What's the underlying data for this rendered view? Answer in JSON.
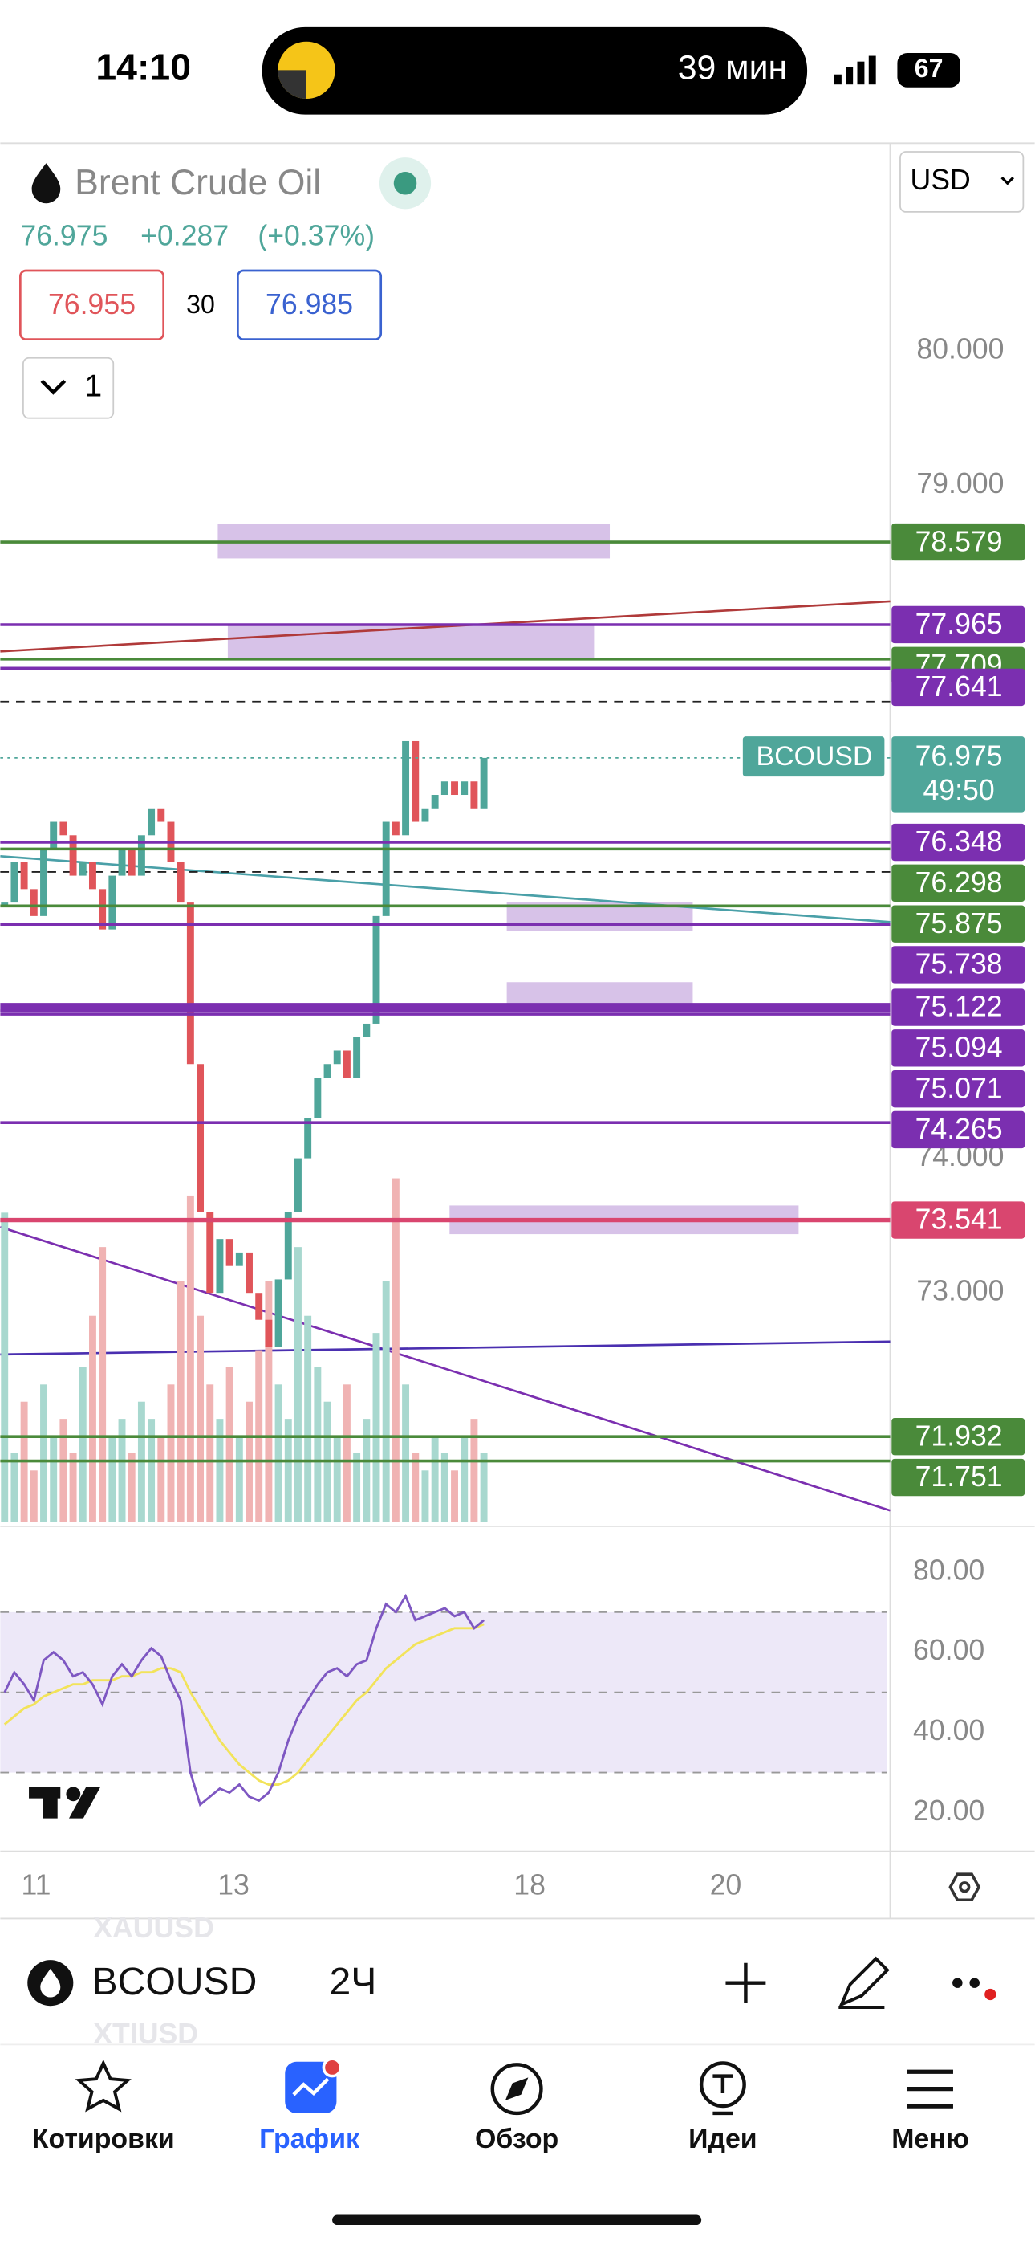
{
  "status_bar": {
    "time": "14:10",
    "activity": "39 мин",
    "battery": "67"
  },
  "header": {
    "symbol_name": "Brent Crude Oil",
    "price": "76.975",
    "change": "+0.287",
    "change_pct": "(+0.37%)",
    "bid": "76.955",
    "spread": "30",
    "ask": "76.985",
    "indicators_toggle": "1",
    "currency": "USD"
  },
  "price_axis": {
    "ticks": [
      "80.000",
      "79.000",
      "74.000",
      "73.000"
    ]
  },
  "levels": [
    {
      "label": "78.579",
      "color": "#4a8a3a"
    },
    {
      "label": "77.965",
      "color": "#7b2fb0"
    },
    {
      "label": "77.709",
      "color": "#4a8a3a"
    },
    {
      "label": "77.641",
      "color": "#7b2fb0"
    },
    {
      "label": "76.348",
      "color": "#7b2fb0"
    },
    {
      "label": "76.298",
      "color": "#4a8a3a"
    },
    {
      "label": "75.875",
      "color": "#4a8a3a"
    },
    {
      "label": "75.738",
      "color": "#7b2fb0"
    },
    {
      "label": "75.122",
      "color": "#7b2fb0"
    },
    {
      "label": "75.094",
      "color": "#7b2fb0"
    },
    {
      "label": "75.071",
      "color": "#7b2fb0"
    },
    {
      "label": "74.265",
      "color": "#7b2fb0"
    },
    {
      "label": "73.541",
      "color": "#d9466f"
    },
    {
      "label": "71.932",
      "color": "#4a8a3a"
    },
    {
      "label": "71.751",
      "color": "#4a8a3a"
    }
  ],
  "last_price": {
    "symbol": "BCOUSD",
    "label": "76.975",
    "countdown": "49:50",
    "color": "#4fa69a"
  },
  "candles": {
    "close": [
      75.9,
      76.2,
      76.0,
      75.8,
      76.3,
      76.5,
      76.4,
      76.1,
      76.2,
      76.0,
      75.7,
      76.1,
      76.3,
      76.1,
      76.4,
      76.6,
      76.5,
      76.2,
      75.9,
      74.7,
      73.6,
      73.0,
      73.4,
      73.2,
      73.3,
      73.0,
      72.8,
      72.6,
      73.1,
      73.6,
      74.0,
      74.3,
      74.6,
      74.7,
      74.8,
      74.6,
      74.9,
      75.0,
      75.8,
      76.5,
      76.4,
      77.1,
      76.5,
      76.6,
      76.7,
      76.8,
      76.7,
      76.8,
      76.6,
      76.975
    ],
    "volume": [
      90,
      20,
      35,
      15,
      40,
      25,
      30,
      20,
      45,
      60,
      80,
      25,
      30,
      20,
      35,
      30,
      25,
      40,
      70,
      95,
      60,
      40,
      30,
      45,
      25,
      35,
      50,
      70,
      40,
      30,
      80,
      60,
      45,
      35,
      25,
      40,
      20,
      30,
      55,
      70,
      100,
      40,
      20,
      15,
      25,
      20,
      15,
      25,
      30,
      20
    ]
  },
  "rsi": {
    "ticks": [
      "80.00",
      "60.00",
      "40.00",
      "20.00"
    ],
    "values": [
      50,
      55,
      52,
      48,
      58,
      60,
      58,
      54,
      55,
      52,
      47,
      54,
      57,
      54,
      58,
      61,
      59,
      53,
      48,
      30,
      22,
      24,
      26,
      25,
      27,
      24,
      23,
      25,
      30,
      38,
      44,
      48,
      52,
      55,
      56,
      54,
      57,
      58,
      66,
      72,
      70,
      74,
      68,
      69,
      70,
      71,
      69,
      70,
      66,
      68
    ],
    "ma": [
      42,
      44,
      46,
      47,
      49,
      50,
      51,
      52,
      52,
      53,
      53,
      53,
      54,
      54,
      55,
      55,
      56,
      56,
      55,
      50,
      46,
      42,
      38,
      35,
      32,
      30,
      28,
      27,
      27,
      28,
      30,
      33,
      36,
      39,
      42,
      45,
      48,
      50,
      53,
      56,
      58,
      60,
      62,
      63,
      64,
      65,
      66,
      66,
      66,
      67
    ]
  },
  "date_axis": {
    "labels": [
      "11",
      "13",
      "18",
      "20"
    ]
  },
  "toolbar": {
    "symbol": "BCOUSD",
    "interval": "2Ч",
    "ghost": [
      "XAUUSD",
      "XTIUSD"
    ]
  },
  "nav": [
    {
      "label": "Котировки"
    },
    {
      "label": "График"
    },
    {
      "label": "Обзор"
    },
    {
      "label": "Идеи"
    },
    {
      "label": "Меню"
    }
  ]
}
